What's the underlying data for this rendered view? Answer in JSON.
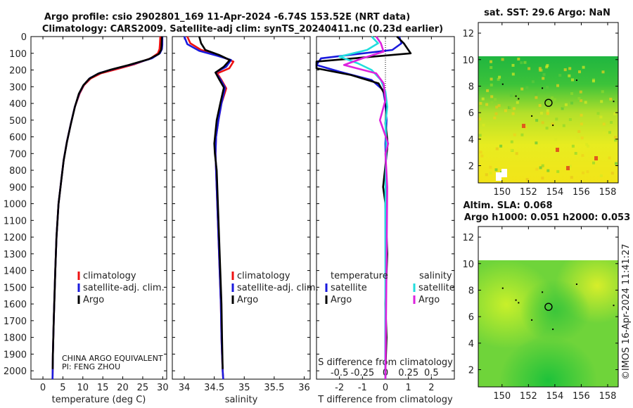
{
  "title": {
    "line1": "Argo profile: csio 2902801_169 11-Apr-2024 -6.74S 153.52E (NRT data)",
    "line2": "Climatology: CARS2009. Satellite-adj clim: synTS_20240411.nc (0.23d earlier)"
  },
  "credit": {
    "line1": "CHINA ARGO EQUIVALENT",
    "line2": "PI: FENG ZHOU"
  },
  "timestamp": "©IMOS 16-Apr-2024 11:41:27",
  "colors": {
    "argo": "#000000",
    "climatology": "#ee1111",
    "satellite": "#1a1add",
    "sat_salinity": "#22dddd",
    "argo_salinity": "#dd22dd"
  },
  "chart_data": [
    {
      "id": "temperature",
      "type": "line",
      "xlabel": "temperature (deg C)",
      "ylabel": "",
      "xlim": [
        -3,
        31
      ],
      "ylim": [
        0,
        2050
      ],
      "y_inverted": true,
      "x_ticks": [
        0,
        5,
        10,
        15,
        20,
        25,
        30
      ],
      "y_ticks": [
        0,
        100,
        200,
        300,
        400,
        500,
        600,
        700,
        800,
        900,
        1000,
        1100,
        1200,
        1300,
        1400,
        1500,
        1600,
        1700,
        1800,
        1900,
        2000
      ],
      "legend": [
        "climatology",
        "satellite-adj. clim.",
        "Argo"
      ],
      "series": [
        {
          "name": "climatology",
          "color": "#ee1111",
          "x": [
            29.4,
            29.3,
            29.2,
            28.8,
            27.0,
            23.0,
            18.5,
            14.5,
            12.0,
            10.3,
            9.2,
            8.0,
            7.0,
            6.0,
            5.2,
            4.6,
            3.9,
            3.4,
            3.1,
            2.9,
            2.7,
            2.6,
            2.5,
            2.45,
            2.4
          ],
          "y": [
            0,
            50,
            75,
            100,
            130,
            165,
            195,
            220,
            250,
            290,
            340,
            420,
            520,
            630,
            740,
            860,
            1000,
            1200,
            1400,
            1550,
            1700,
            1800,
            1900,
            2000,
            2050
          ]
        },
        {
          "name": "satellite-adj. clim.",
          "color": "#1a1add",
          "x": [
            29.9,
            29.9,
            29.8,
            29.3,
            27.3,
            22.5,
            18.0,
            14.2,
            11.8,
            10.2,
            9.1,
            8.0,
            7.0,
            6.0,
            5.2,
            4.6,
            3.9,
            3.4,
            3.1,
            2.9,
            2.7,
            2.6,
            2.5,
            2.45,
            2.4
          ],
          "y": [
            0,
            50,
            75,
            100,
            130,
            165,
            192,
            218,
            248,
            290,
            340,
            420,
            520,
            630,
            740,
            860,
            1000,
            1200,
            1400,
            1550,
            1700,
            1800,
            1900,
            2000,
            2050
          ]
        },
        {
          "name": "Argo",
          "color": "#000000",
          "x": [
            29.8,
            29.7,
            29.6,
            29.0,
            26.5,
            21.5,
            17.0,
            13.8,
            11.6,
            10.1,
            9.0,
            8.0,
            7.0,
            6.0,
            5.2,
            4.6,
            3.9,
            3.4,
            3.1,
            2.9,
            2.7,
            2.6,
            2.5,
            2.45
          ],
          "y": [
            0,
            55,
            80,
            105,
            135,
            170,
            198,
            222,
            252,
            292,
            342,
            422,
            522,
            632,
            742,
            862,
            1002,
            1202,
            1402,
            1552,
            1702,
            1802,
            1902,
            1990
          ]
        }
      ]
    },
    {
      "id": "salinity",
      "type": "line",
      "xlabel": "salinity",
      "ylabel": "",
      "xlim": [
        33.8,
        36.1
      ],
      "ylim": [
        0,
        2050
      ],
      "y_inverted": true,
      "x_ticks": [
        34,
        34.5,
        35,
        35.5,
        36
      ],
      "legend": [
        "climatology",
        "satellite-adj. clim.",
        "Argo"
      ],
      "series": [
        {
          "name": "climatology",
          "color": "#ee1111",
          "x": [
            34.05,
            34.1,
            34.28,
            34.55,
            34.82,
            34.75,
            34.55,
            34.62,
            34.7,
            34.62,
            34.57,
            34.53,
            34.52,
            34.53,
            34.55,
            34.57,
            34.59,
            34.61,
            34.62,
            34.63,
            34.64,
            34.65
          ],
          "y": [
            0,
            40,
            80,
            110,
            150,
            190,
            220,
            260,
            310,
            400,
            500,
            600,
            700,
            800,
            1000,
            1200,
            1400,
            1600,
            1800,
            1900,
            2000,
            2050
          ]
        },
        {
          "name": "satellite-adj. clim.",
          "color": "#1a1add",
          "x": [
            34.0,
            34.05,
            34.25,
            34.55,
            34.78,
            34.7,
            34.52,
            34.6,
            34.68,
            34.62,
            34.57,
            34.53,
            34.52,
            34.53,
            34.55,
            34.57,
            34.59,
            34.61,
            34.62,
            34.63,
            34.64,
            34.65
          ],
          "y": [
            0,
            45,
            85,
            115,
            140,
            180,
            215,
            255,
            305,
            400,
            500,
            600,
            700,
            800,
            1000,
            1200,
            1400,
            1600,
            1800,
            1900,
            2000,
            2050
          ]
        },
        {
          "name": "Argo",
          "color": "#000000",
          "x": [
            34.25,
            34.28,
            34.35,
            34.58,
            34.76,
            34.66,
            34.52,
            34.58,
            34.66,
            34.6,
            34.54,
            34.5,
            34.51,
            34.54,
            34.56,
            34.58,
            34.6,
            34.62,
            34.63,
            34.64
          ],
          "y": [
            0,
            40,
            80,
            110,
            140,
            180,
            215,
            255,
            305,
            400,
            500,
            640,
            700,
            800,
            1000,
            1200,
            1400,
            1600,
            1800,
            1990
          ]
        }
      ]
    },
    {
      "id": "difference",
      "type": "line",
      "xlabel": "T difference from climatology",
      "xlabel_top": "S difference from climatology",
      "ylabel": "",
      "xlim": [
        -3,
        3
      ],
      "ylim": [
        0,
        2050
      ],
      "y_inverted": true,
      "x_ticks": [
        -2,
        -1,
        0,
        1,
        2
      ],
      "x_tick_labels": [
        "-2",
        "-1",
        "0",
        "1",
        "2"
      ],
      "s_ticks": [
        -0.5,
        -0.25,
        0,
        0.25,
        0.5
      ],
      "s_tick_labels": [
        "-0.5",
        "-0.25",
        "0",
        "0.25",
        "0.5"
      ],
      "legend_temperature_title": "temperature",
      "legend_salinity_title": "salinity",
      "legend": [
        "satellite",
        "Argo",
        "satellite",
        "Argo"
      ],
      "series": [
        {
          "name": "temperature satellite",
          "color": "#1a1add",
          "x": [
            0.6,
            0.7,
            0.3,
            -2.8,
            -3.0,
            -2.0,
            -0.6,
            -0.1,
            0.0,
            0.05,
            0.0,
            0.02,
            0.0,
            0.01,
            0.0,
            0.0
          ],
          "y": [
            0,
            40,
            80,
            130,
            170,
            210,
            260,
            320,
            400,
            500,
            640,
            800,
            1000,
            1400,
            1800,
            2050
          ]
        },
        {
          "name": "temperature Argo",
          "color": "#000000",
          "x": [
            0.5,
            0.8,
            1.1,
            -3.0,
            -3.0,
            -1.5,
            -0.3,
            -0.05,
            0.05,
            0.0,
            0.1,
            -0.1,
            0.0,
            0.08,
            0.0,
            0.05,
            0.0
          ],
          "y": [
            0,
            40,
            100,
            150,
            190,
            230,
            280,
            340,
            420,
            520,
            640,
            900,
            1000,
            1300,
            1600,
            1800,
            2000
          ]
        },
        {
          "name": "salinity satellite",
          "color": "#22dddd",
          "x": [
            -0.15,
            -0.08,
            -0.2,
            -0.5,
            -0.3,
            -0.15,
            -0.05,
            0.0,
            0.02,
            0.0,
            0.01,
            0.0,
            0.0
          ],
          "y": [
            0,
            40,
            80,
            120,
            160,
            200,
            260,
            330,
            420,
            520,
            640,
            900,
            2050
          ]
        },
        {
          "name": "salinity Argo",
          "color": "#dd22dd",
          "x": [
            -0.1,
            -0.05,
            -0.02,
            -0.25,
            -0.45,
            -0.1,
            -0.02,
            0.0,
            -0.06,
            0.03,
            0.0,
            0.02,
            0.0
          ],
          "y": [
            0,
            40,
            90,
            130,
            170,
            220,
            280,
            380,
            500,
            640,
            700,
            900,
            2050
          ]
        }
      ]
    },
    {
      "id": "sst_map",
      "type": "heatmap",
      "title": "sat. SST: 29.6 Argo: NaN",
      "xlim": [
        148.2,
        158.8
      ],
      "ylim": [
        0.7,
        12.8
      ],
      "data_top": 10,
      "x_ticks": [
        150,
        152,
        154,
        156,
        158
      ],
      "y_ticks": [
        2,
        4,
        6,
        8,
        10,
        12
      ],
      "marker": {
        "lon": 153.52,
        "lat": 6.74
      }
    },
    {
      "id": "sla_map",
      "type": "heatmap",
      "title": "Altim. SLA: 0.068",
      "subtitle": "Argo h1000: 0.051 h2000: 0.053",
      "xlim": [
        148.2,
        158.8
      ],
      "ylim": [
        0.7,
        12.8
      ],
      "data_top": 10,
      "x_ticks": [
        150,
        152,
        154,
        156,
        158
      ],
      "y_ticks": [
        2,
        4,
        6,
        8,
        10,
        12
      ],
      "marker": {
        "lon": 153.52,
        "lat": 6.74
      }
    }
  ]
}
